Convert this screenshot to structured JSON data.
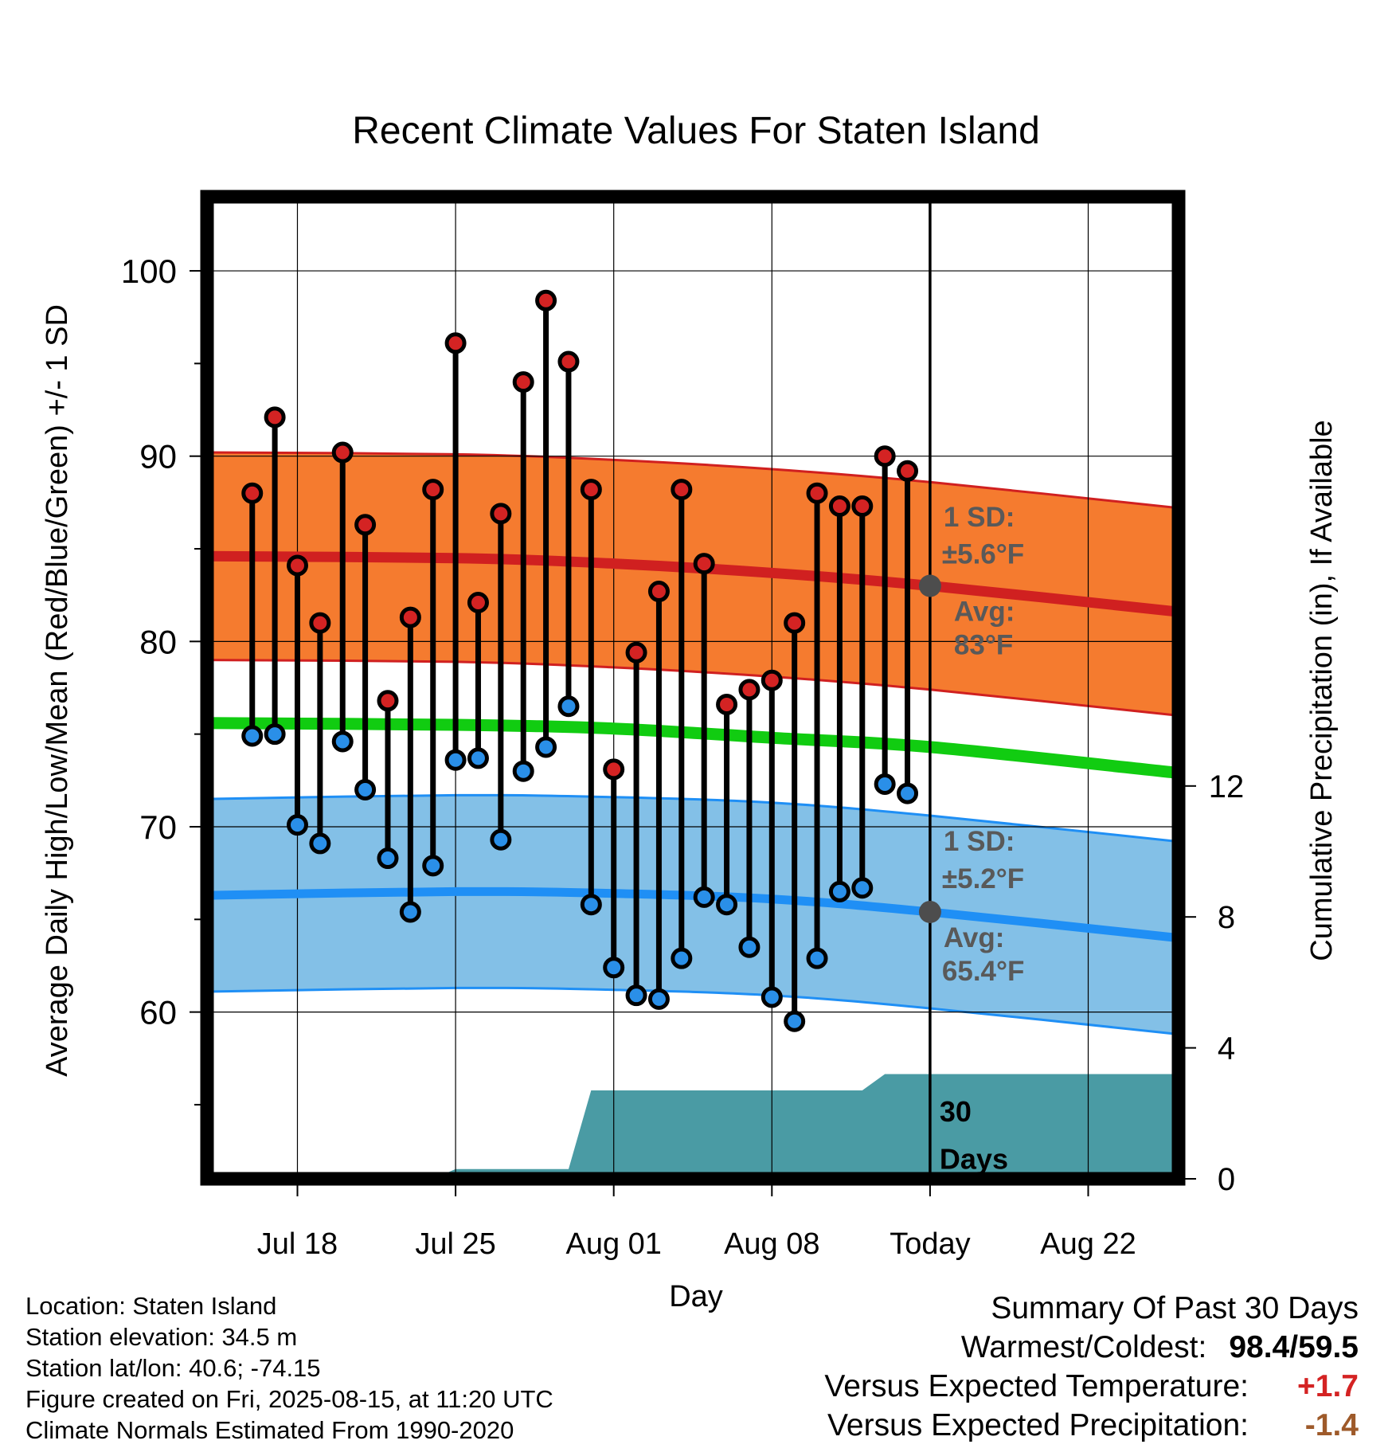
{
  "chart_data": {
    "type": "line",
    "title": "Recent Climate Values For Staten Island",
    "xlabel": "Day",
    "ylabel": "Average Daily High/Low/Mean (Red/Blue/Green) +/- 1 SD",
    "y2label": "Cumulative Precipitation (in), If Available",
    "x_domain": [
      "2025-07-14",
      "2025-08-26"
    ],
    "ylim": [
      51,
      104
    ],
    "y2lim": [
      0,
      30
    ],
    "yticks": [
      60,
      70,
      80,
      90,
      100
    ],
    "y2ticks": [
      0,
      4,
      8,
      12
    ],
    "xticks": [
      {
        "date": "2025-07-18",
        "label": "Jul 18"
      },
      {
        "date": "2025-07-25",
        "label": "Jul 25"
      },
      {
        "date": "2025-08-01",
        "label": "Aug 01"
      },
      {
        "date": "2025-08-08",
        "label": "Aug 08"
      },
      {
        "date": "2025-08-15",
        "label": "Today"
      },
      {
        "date": "2025-08-22",
        "label": "Aug 22"
      }
    ],
    "today": "2025-08-15",
    "grid": true,
    "daily": {
      "dates": [
        "2025-07-16",
        "2025-07-17",
        "2025-07-18",
        "2025-07-19",
        "2025-07-20",
        "2025-07-21",
        "2025-07-22",
        "2025-07-23",
        "2025-07-24",
        "2025-07-25",
        "2025-07-26",
        "2025-07-27",
        "2025-07-28",
        "2025-07-29",
        "2025-07-30",
        "2025-07-31",
        "2025-08-01",
        "2025-08-02",
        "2025-08-03",
        "2025-08-04",
        "2025-08-05",
        "2025-08-06",
        "2025-08-07",
        "2025-08-08",
        "2025-08-09",
        "2025-08-10",
        "2025-08-11",
        "2025-08-12",
        "2025-08-13",
        "2025-08-14"
      ],
      "highs": [
        88.0,
        92.1,
        84.1,
        81.0,
        90.2,
        86.3,
        76.8,
        81.3,
        88.2,
        96.1,
        82.1,
        86.9,
        94.0,
        98.4,
        95.1,
        88.2,
        73.1,
        79.4,
        82.7,
        88.2,
        84.2,
        76.6,
        77.4,
        77.9,
        81.0,
        88.0,
        87.3,
        87.3,
        90.0,
        89.2
      ],
      "lows": [
        74.9,
        75.0,
        70.1,
        69.1,
        74.6,
        72.0,
        68.3,
        65.4,
        67.9,
        73.6,
        73.7,
        69.3,
        73.0,
        74.3,
        76.5,
        65.8,
        62.4,
        60.9,
        60.7,
        62.9,
        66.2,
        65.8,
        63.5,
        60.8,
        59.5,
        62.9,
        66.5,
        66.7,
        72.3,
        71.8
      ]
    },
    "normals": {
      "dates": [
        "2025-07-14",
        "2025-07-25",
        "2025-08-01",
        "2025-08-08",
        "2025-08-15",
        "2025-08-26"
      ],
      "high_avg": [
        84.6,
        84.5,
        84.2,
        83.7,
        83.0,
        81.6
      ],
      "high_sd": 5.6,
      "low_avg": [
        66.3,
        66.5,
        66.4,
        66.1,
        65.4,
        64.0
      ],
      "low_sd": 5.2,
      "mean_avg": [
        75.6,
        75.5,
        75.3,
        74.8,
        74.3,
        72.9
      ]
    },
    "precip_cumulative": {
      "dates": [
        "2025-07-14",
        "2025-07-24",
        "2025-07-24",
        "2025-07-25",
        "2025-07-30",
        "2025-07-30",
        "2025-07-31",
        "2025-08-01",
        "2025-08-12",
        "2025-08-13",
        "2025-08-26"
      ],
      "values": [
        0,
        0,
        0,
        0.3,
        0.3,
        0.3,
        2.7,
        2.7,
        2.7,
        3.2,
        3.2
      ]
    },
    "annotations": {
      "high_sd_label": "1 SD:",
      "high_sd_value": "±5.6°F",
      "high_avg_label": "Avg:",
      "high_avg_value": "83°F",
      "low_sd_label": "1 SD:",
      "low_sd_value": "±5.2°F",
      "low_avg_label": "Avg:",
      "low_avg_value": "65.4°F",
      "days_label_1": "30",
      "days_label_2": "Days"
    },
    "colors": {
      "high_band": "#f57b2f",
      "high_line": "#d02020",
      "low_band": "#83c0e7",
      "low_line": "#1f8ff5",
      "mean_line": "#11cc11",
      "precip": "#4a9ba4",
      "high_marker": "#d42323",
      "low_marker": "#2a8fe8",
      "annotation": "#595959",
      "warm": "#d42323",
      "dry": "#9e5a2a"
    }
  },
  "footer": {
    "location": "Location: Staten Island",
    "elevation": "Station elevation: 34.5 m",
    "latlon": "Station lat/lon: 40.6; -74.15",
    "created": "Figure created on Fri, 2025-08-15, at 11:20 UTC",
    "normals": "Climate Normals Estimated From 1990-2020"
  },
  "summary": {
    "heading": "Summary Of Past 30 Days",
    "warm_cold_label": "Warmest/Coldest:",
    "warm_cold_value": "98.4/59.5",
    "temp_label": "Versus Expected Temperature:",
    "temp_value": "+1.7",
    "precip_label": "Versus Expected Precipitation:",
    "precip_value": "-1.4"
  }
}
